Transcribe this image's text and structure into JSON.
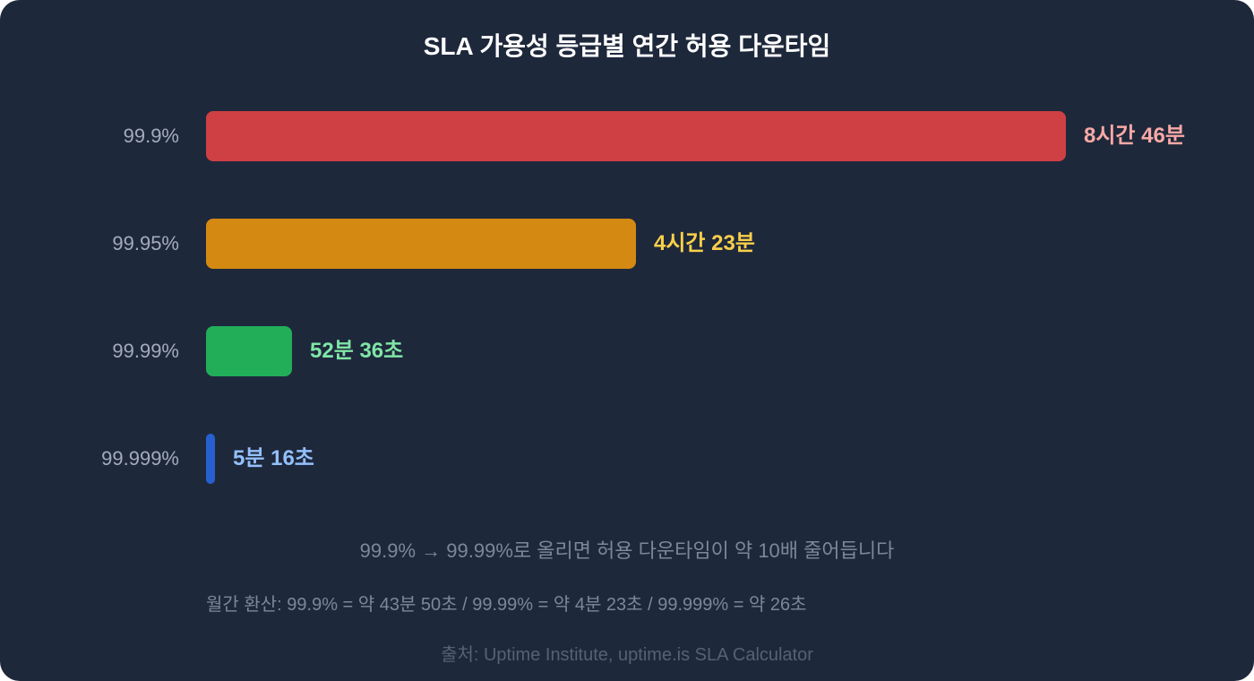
{
  "chart_data": {
    "type": "bar",
    "orientation": "horizontal",
    "title": "SLA 가용성 등급별 연간 허용 다운타임",
    "unit": "minutes",
    "categories": [
      "99.9%",
      "99.95%",
      "99.99%",
      "99.999%"
    ],
    "values": [
      525.6,
      262.8,
      52.6,
      5.27
    ],
    "value_labels": [
      "8시간 46분",
      "4시간 23분",
      "52분 36초",
      "5분 16초"
    ],
    "colors": [
      "#cf4044",
      "#d48a12",
      "#22ae58",
      "#2660d0"
    ],
    "label_colors": [
      "#f8a9a6",
      "#f9cf4a",
      "#7fe6a6",
      "#93c0fb"
    ],
    "xlim": [
      0,
      525.6
    ],
    "grid": false,
    "legend": false
  },
  "note": "99.9% → 99.99%로 올리면 허용 다운타임이 약 10배 줄어듭니다",
  "monthly": "월간 환산: 99.9% = 약 43분 50초 / 99.99% = 약 4분 23초 / 99.999% = 약 26초",
  "source": "출처: Uptime Institute, uptime.is SLA Calculator"
}
